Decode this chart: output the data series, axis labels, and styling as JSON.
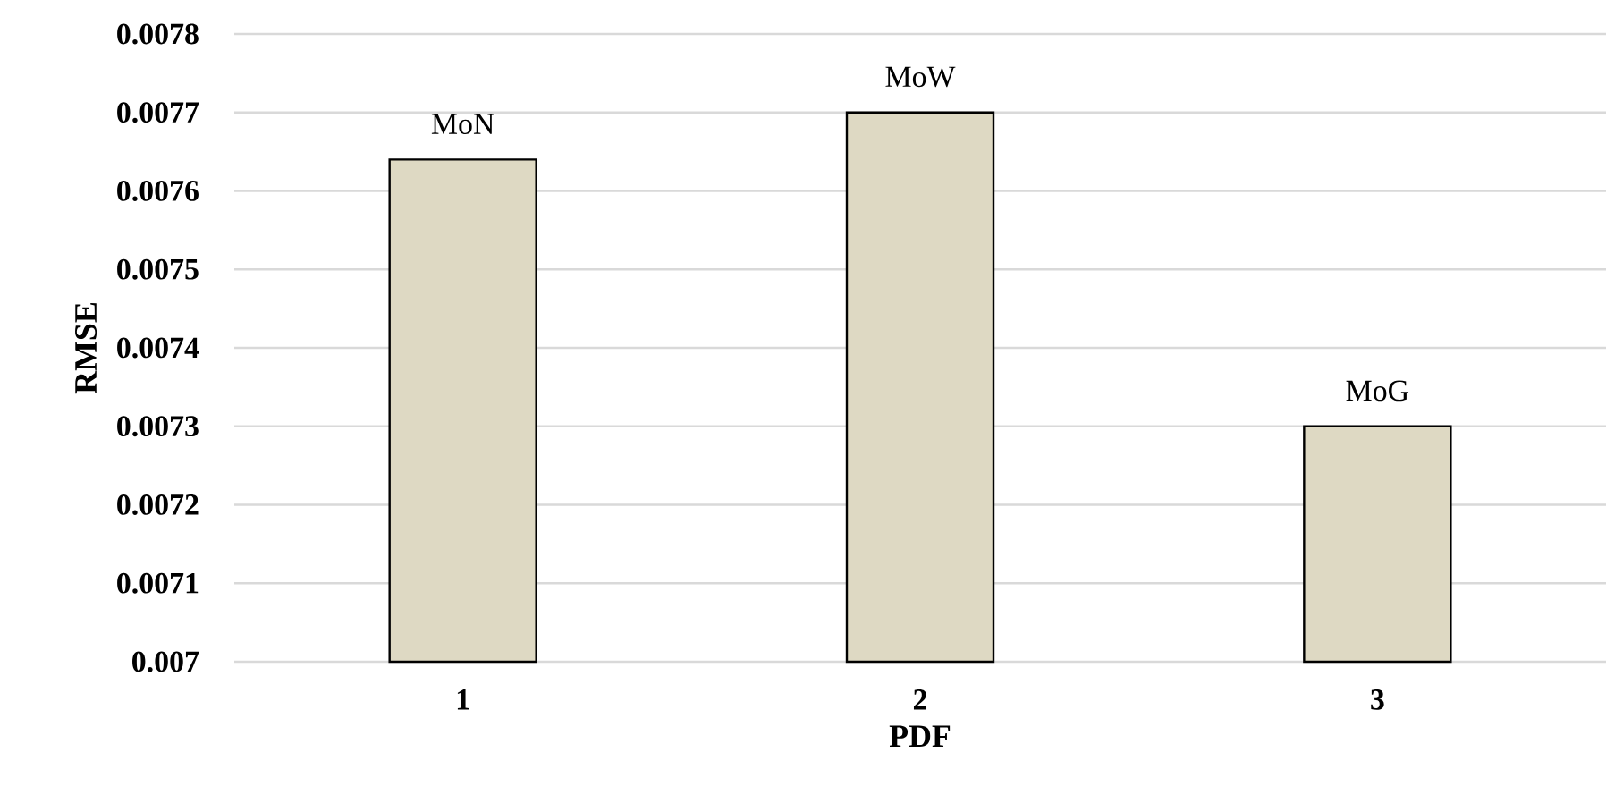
{
  "chart_data": {
    "type": "bar",
    "xlabel": "PDF",
    "ylabel": "RMSE",
    "categories": [
      "1",
      "2",
      "3"
    ],
    "values": [
      0.00764,
      0.0077,
      0.0073
    ],
    "value_labels": [
      "MoN",
      "MoW",
      "MoG"
    ],
    "color": "#ded9c3",
    "ylim": [
      0.007,
      0.0078
    ],
    "yticks": [
      0.007,
      0.0071,
      0.0072,
      0.0073,
      0.0074,
      0.0075,
      0.0076,
      0.0077,
      0.0078
    ],
    "grid": "y"
  }
}
